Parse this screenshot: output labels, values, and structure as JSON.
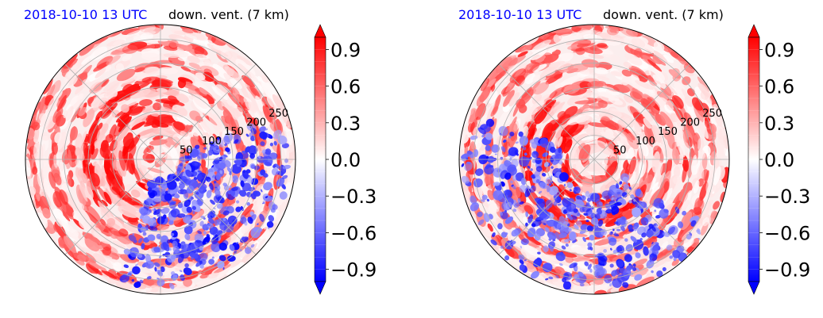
{
  "chart_data": [
    {
      "type": "heatmap",
      "projection": "polar",
      "title_left": "2018-10-10 13 UTC",
      "title_right": "down. vent. (7 km)",
      "radial_ticks": [
        "50",
        "100",
        "150",
        "200",
        "250"
      ],
      "radial_tick_values": [
        50,
        100,
        150,
        200,
        250
      ],
      "r_max": 280,
      "grid": true,
      "colormap": "bwr",
      "colorbar": {
        "ticks": [
          "0.9",
          "0.6",
          "0.3",
          "0.0",
          "−0.3",
          "−0.6",
          "−0.9"
        ],
        "tick_values": [
          0.9,
          0.6,
          0.3,
          0.0,
          -0.3,
          -0.6,
          -0.9
        ],
        "vmin": -1.0,
        "vmax": 1.0,
        "levels": 21,
        "extend": "both"
      },
      "pattern": {
        "seed": 11,
        "spiralSkew": 1.1,
        "ringStart": 0.18,
        "ringEnd": 0.62,
        "mainArc": [
          70,
          250
        ],
        "blueArc": [
          -110,
          20
        ],
        "blueInner": 0.15,
        "blueOuter": 0.95
      }
    },
    {
      "type": "heatmap",
      "projection": "polar",
      "title_left": "2018-10-10 13 UTC",
      "title_right": "down. vent. (7 km)",
      "radial_ticks": [
        "50",
        "100",
        "150",
        "200",
        "250"
      ],
      "radial_tick_values": [
        50,
        100,
        150,
        200,
        250
      ],
      "r_max": 280,
      "grid": true,
      "colormap": "bwr",
      "colorbar": {
        "ticks": [
          "0.9",
          "0.6",
          "0.3",
          "0.0",
          "−0.3",
          "−0.6",
          "−0.9"
        ],
        "tick_values": [
          0.9,
          0.6,
          0.3,
          0.0,
          -0.3,
          -0.6,
          -0.9
        ],
        "vmin": -1.0,
        "vmax": 1.0,
        "levels": 21,
        "extend": "both"
      },
      "pattern": {
        "seed": 29,
        "spiralSkew": 1.4,
        "ringStart": 0.2,
        "ringEnd": 0.55,
        "mainArc": [
          120,
          320
        ],
        "blueArc": [
          -200,
          -30
        ],
        "blueInner": 0.25,
        "blueOuter": 0.98
      }
    }
  ]
}
